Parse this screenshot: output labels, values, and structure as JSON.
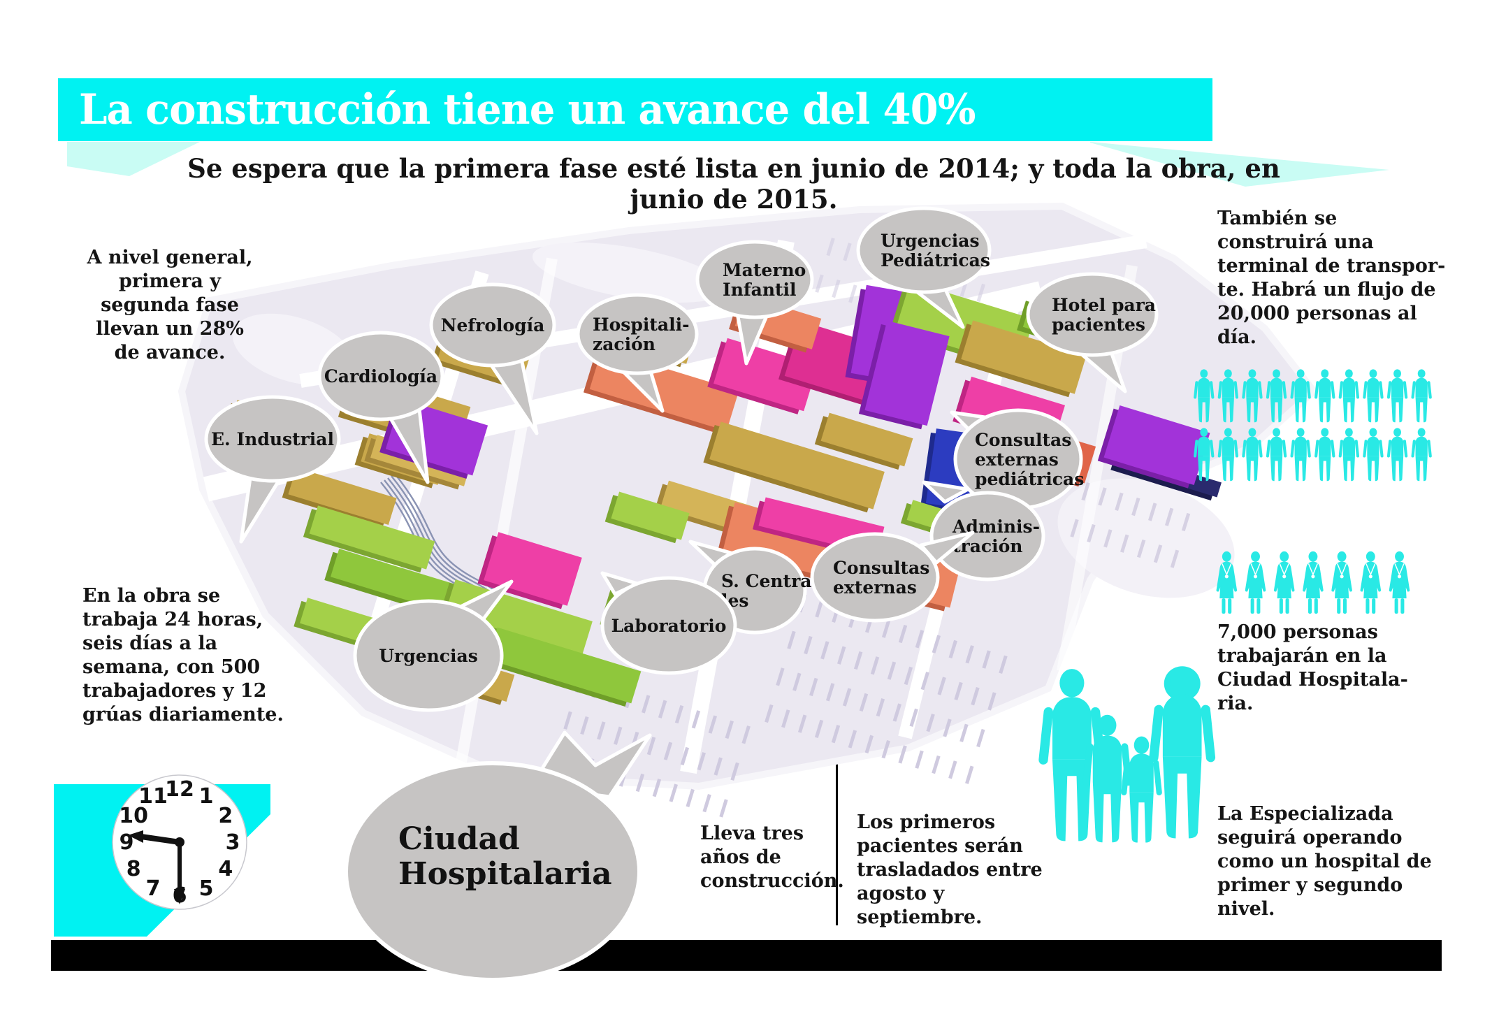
{
  "header": {
    "title": "La construcción tiene un avance del 40%",
    "subtitle": "Se espera que la primera fase esté lista en junio de 2014; y toda la obra, en  junio de 2015."
  },
  "stats": {
    "general": "A nivel general,\nprimera y\nsegunda fase\nllevan un 28%\nde avance.",
    "terminal": "También se\nconstruirá una\nterminal de transpor-\nte. Habrá un flujo de\n20,000 personas al\ndía.",
    "obra": "En la obra se\ntrabaja 24 horas,\nseis días a la\nsemana, con 500\ntrabajadores y 12\ngrúas diariamente.",
    "workers": "7,000 personas\ntrabajarán en la\nCiudad Hospitala-\nria.",
    "years": "Lleva tres\naños de\nconstrucción.",
    "patients": "Los primeros\npacientes serán\ntrasladados entre\nagosto y septiembre.",
    "especializada": "La Especializada\nseguirá operando\ncomo un hospital de\nprimer y segundo\nnivel."
  },
  "map": {
    "main_callout": "Ciudad\nHospitalaria",
    "callouts": [
      {
        "id": "e_industrial",
        "label": "E. Industrial"
      },
      {
        "id": "cardiologia",
        "label": "Cardiología"
      },
      {
        "id": "nefrologia",
        "label": "Nefrología"
      },
      {
        "id": "hospitalizacion",
        "label": "Hospitali-\nzación"
      },
      {
        "id": "materno",
        "label": "Materno\nInfantil"
      },
      {
        "id": "urgencias_ped",
        "label": "Urgencias\nPediátricas"
      },
      {
        "id": "hotel",
        "label": "Hotel para\npacientes"
      },
      {
        "id": "consultas_ped",
        "label": "Consultas\nexternas\npediátricas"
      },
      {
        "id": "administracion",
        "label": "Adminis-\ntración"
      },
      {
        "id": "s_centrales",
        "label": "S. Centra-\nles"
      },
      {
        "id": "consultas_ext",
        "label": "Consultas\nexternas"
      },
      {
        "id": "laboratorio",
        "label": "Laboratorio"
      },
      {
        "id": "urgencias",
        "label": "Urgencias"
      }
    ]
  },
  "icons": {
    "people_rows": [
      10,
      10
    ],
    "doctors": 7,
    "family_members": 4
  },
  "clock": {
    "numbers": [
      "1",
      "2",
      "3",
      "4",
      "5",
      "6",
      "7",
      "8",
      "9",
      "10",
      "11",
      "12"
    ],
    "time_shown": "9:30"
  },
  "colors": {
    "accent_cyan": "#00f2f2",
    "fold_cyan": "#c9fcf4",
    "icon_cyan": "#29e9e5",
    "bubble_gray": "#c6c4c3",
    "bar_black": "#000000"
  }
}
